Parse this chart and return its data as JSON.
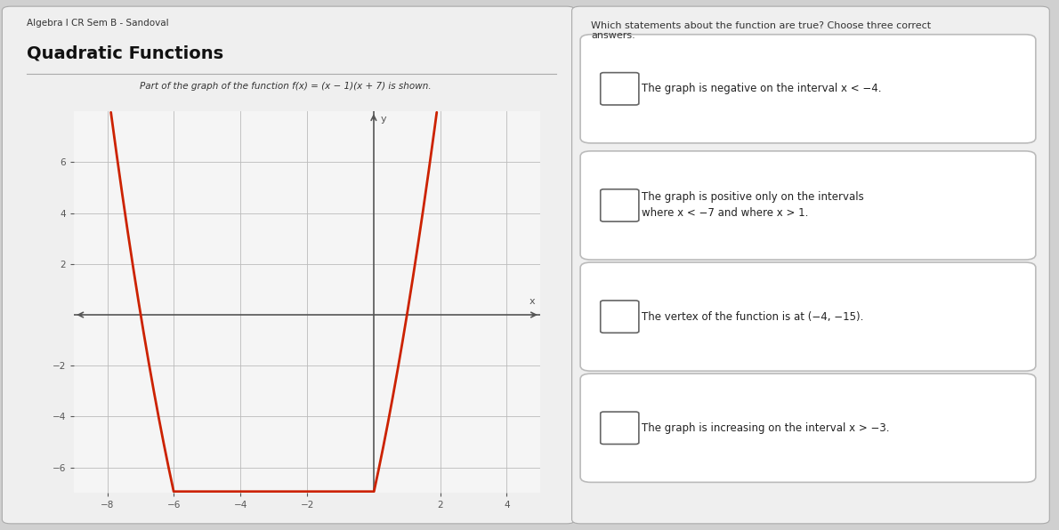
{
  "title_small": "Algebra I CR Sem B - Sandoval",
  "title_large": "Quadratic Functions",
  "left_label": "Part of the graph of the function f(x) = (x − 1)(x + 7) is shown.",
  "right_label": "Which statements about the function are true? Choose three correct\nanswers.",
  "options": [
    "The graph is negative on the interval x < −4.",
    "The graph is positive only on the intervals\nwhere x < −7 and where x > 1.",
    "The vertex of the function is at (−4, −15).",
    "The graph is increasing on the interval x > −3."
  ],
  "bg_color": "#d0d0d0",
  "panel_color": "#efefef",
  "box_color": "#ffffff",
  "grid_color": "#bbbbbb",
  "axis_color": "#555555",
  "curve_color": "#cc2200",
  "arrow_color": "#cc2200",
  "x_range": [
    -9,
    5
  ],
  "y_range": [
    -7,
    8
  ],
  "x_ticks": [
    -8,
    -6,
    -4,
    -2,
    2,
    4
  ],
  "y_ticks": [
    -6,
    -4,
    -2,
    2,
    4,
    6
  ],
  "func_x_min": -9.0,
  "func_x_max": 3.0
}
